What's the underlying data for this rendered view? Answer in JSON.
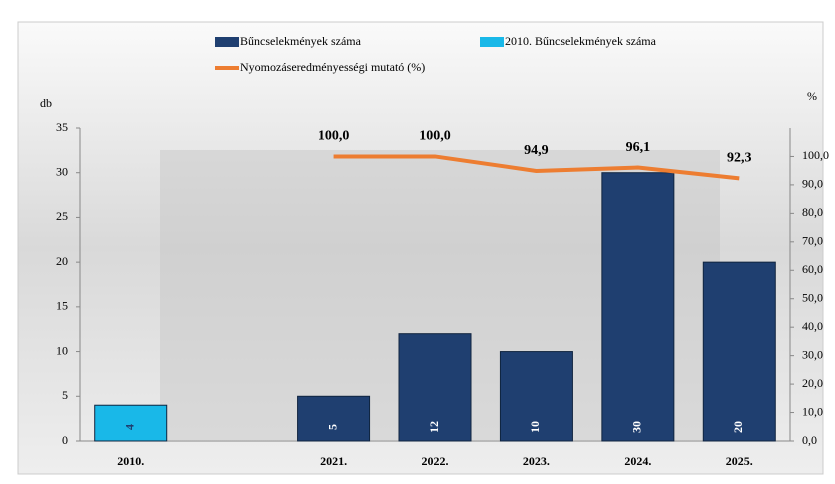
{
  "chart_data": {
    "type": "bar-line",
    "categories": [
      "2010.",
      null,
      "2021.",
      "2022.",
      "2023.",
      "2024.",
      "2025."
    ],
    "series": [
      {
        "name": "Bűncselekmények száma",
        "type": "bar",
        "color": "#1f3f70",
        "values": [
          null,
          null,
          5,
          12,
          10,
          30,
          20
        ]
      },
      {
        "name": "2010. Bűncselekmények száma",
        "type": "bar",
        "color": "#19b8e8",
        "values": [
          4,
          null,
          null,
          null,
          null,
          null,
          null
        ]
      },
      {
        "name": "Nyomozáseredményességi mutató (%)",
        "type": "line",
        "axis": "y2",
        "color": "#ed7d31",
        "values": [
          null,
          null,
          100,
          100,
          94.9,
          96.1,
          92.3
        ],
        "value_labels": [
          null,
          null,
          "100,0",
          "100,0",
          "94,9",
          "96,1",
          "92,3"
        ]
      }
    ],
    "y_label": "db",
    "y2_label": "%",
    "ylim": [
      0,
      35
    ],
    "yticks": [
      0,
      5,
      10,
      15,
      20,
      25,
      30,
      35
    ],
    "y2lim": [
      0,
      110
    ],
    "y2ticks": [
      {
        "value": 0,
        "label": "0,0"
      },
      {
        "value": 10,
        "label": "10,0"
      },
      {
        "value": 20,
        "label": "20,0"
      },
      {
        "value": 30,
        "label": "30,0"
      },
      {
        "value": 40,
        "label": "40,0"
      },
      {
        "value": 50,
        "label": "50,0"
      },
      {
        "value": 60,
        "label": "60,0"
      },
      {
        "value": 70,
        "label": "70,0"
      },
      {
        "value": 80,
        "label": "80,0"
      },
      {
        "value": 90,
        "label": "90,0"
      },
      {
        "value": 100,
        "label": "100,0"
      }
    ]
  }
}
